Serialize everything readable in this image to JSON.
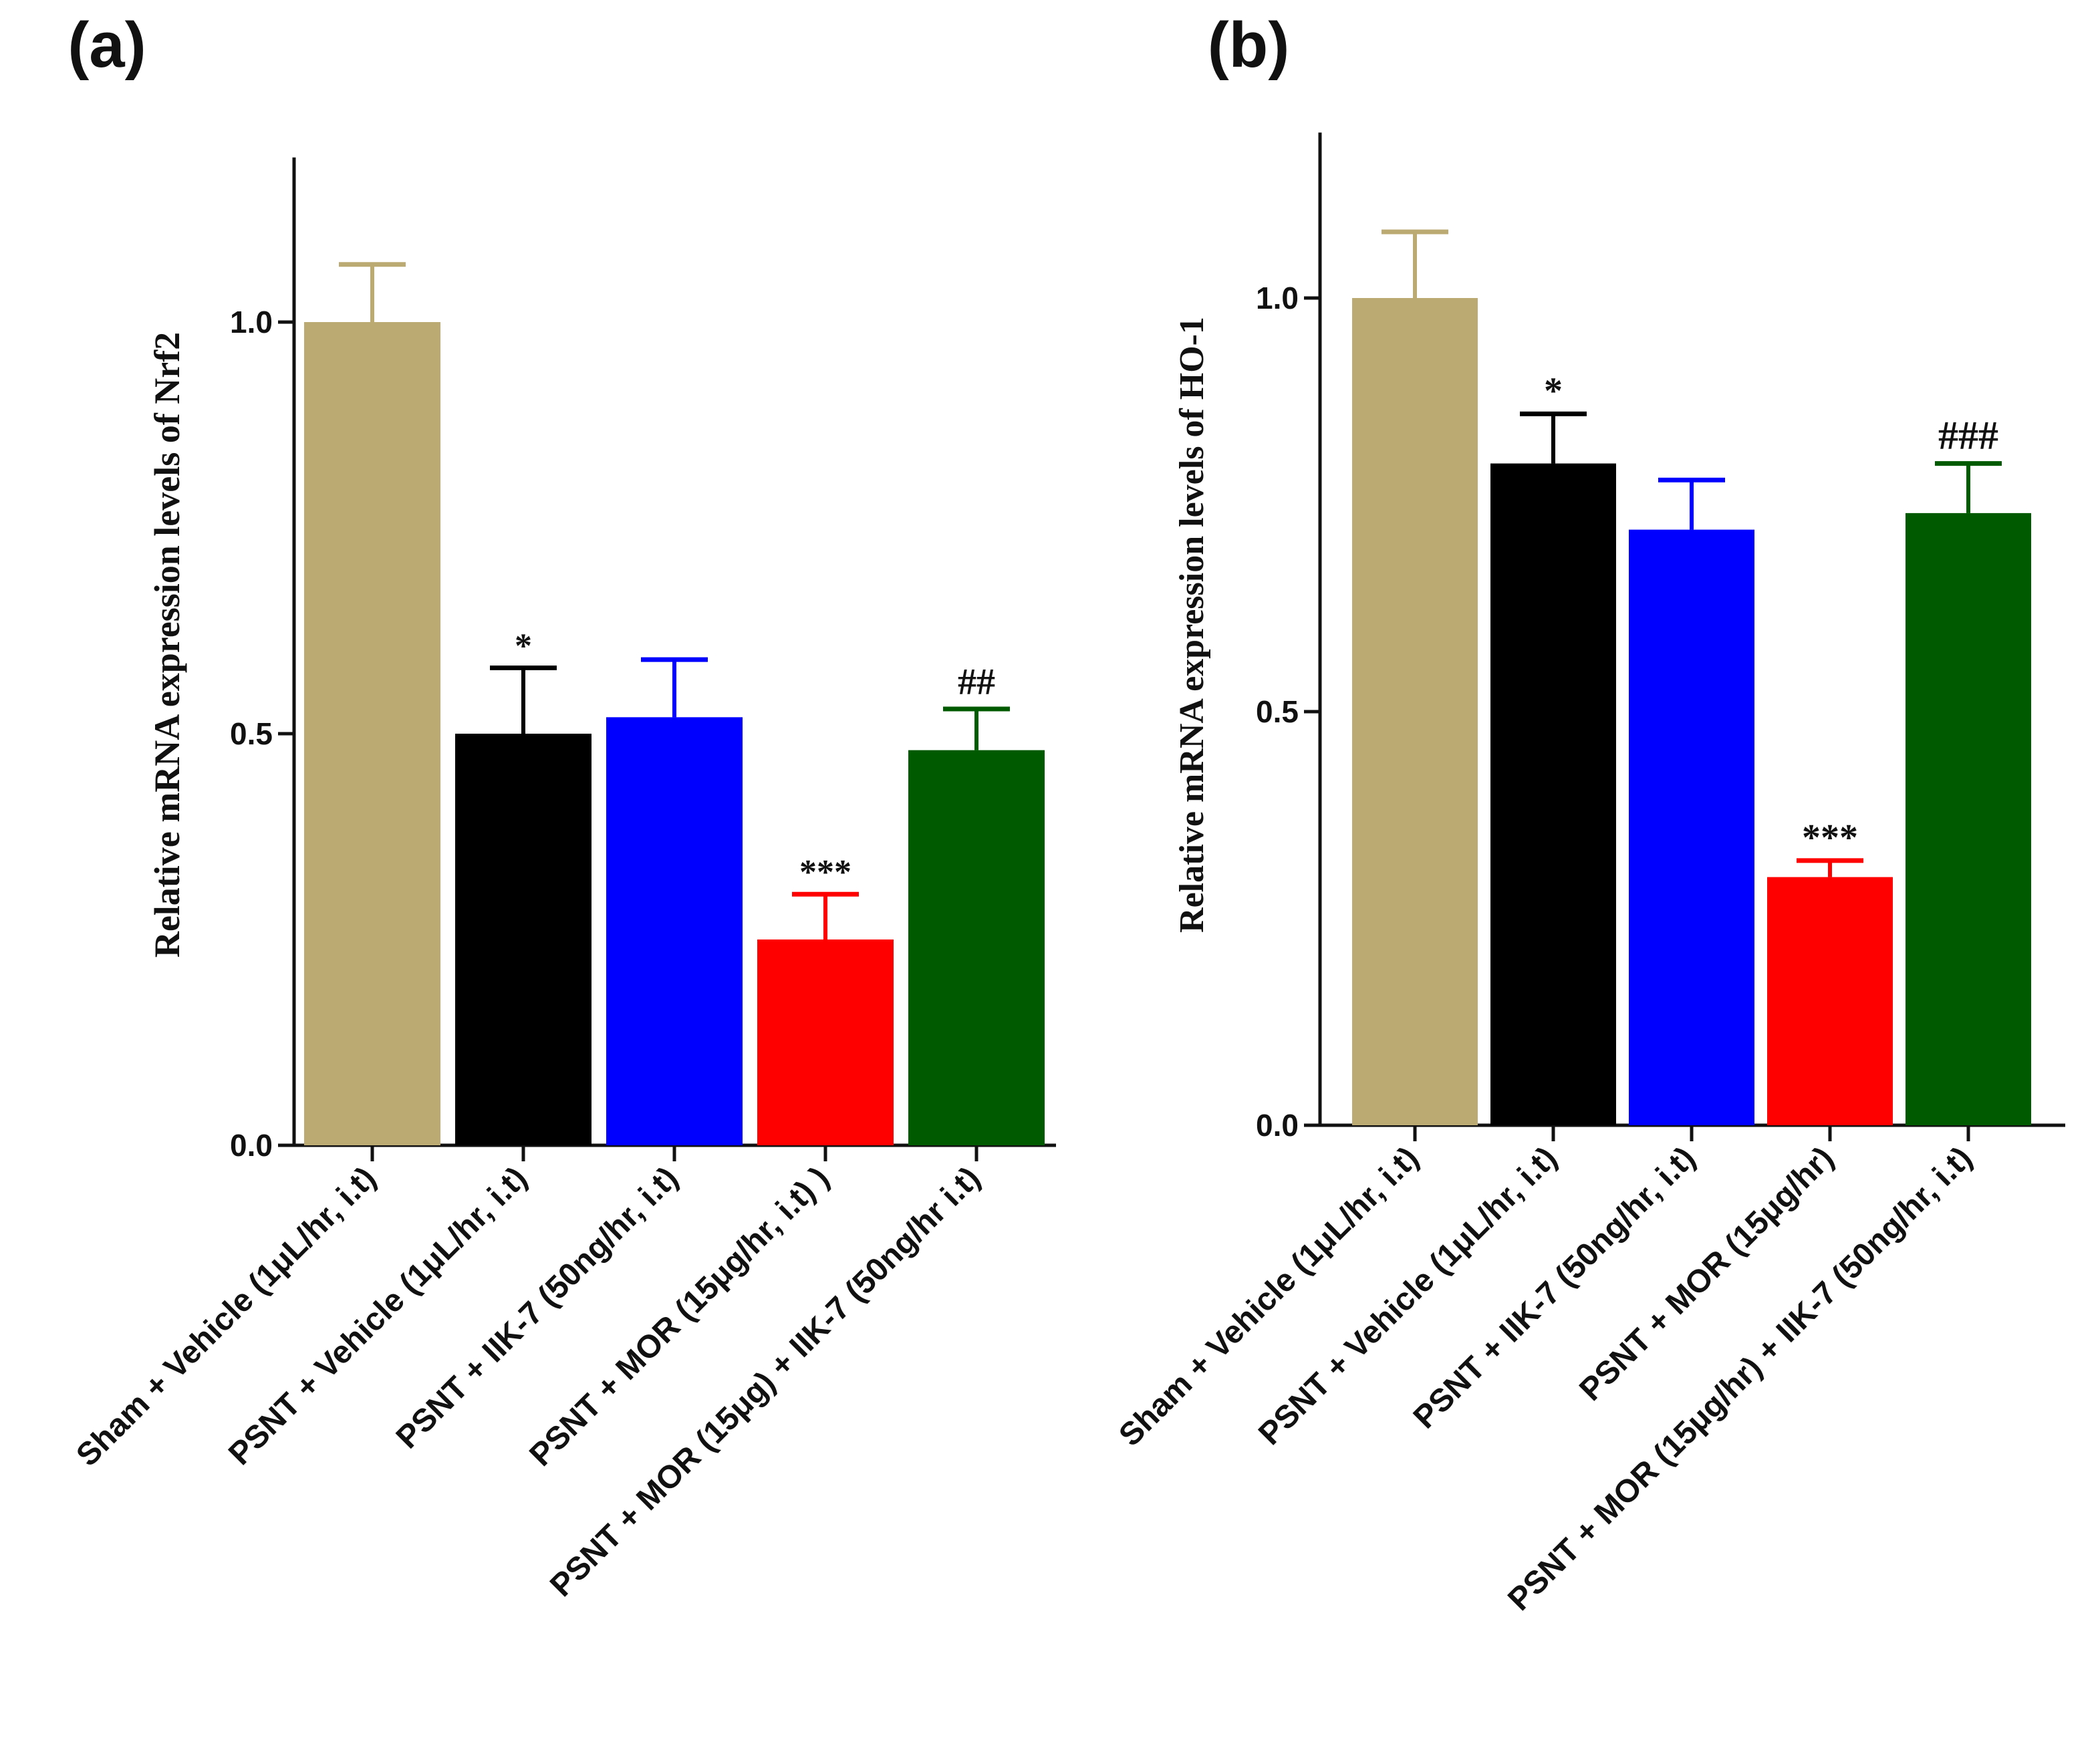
{
  "chart_data": [
    {
      "type": "bar",
      "panel_label": "(a)",
      "title": "",
      "xlabel": "",
      "ylabel": "Relative mRNA expression levels of Nrf2",
      "ylim": [
        0,
        1.2
      ],
      "yticks": [
        0.0,
        0.5,
        1.0
      ],
      "ytick_labels": [
        "0.0",
        "0.5",
        "1.0"
      ],
      "grid": false,
      "categories": [
        "Sham + Vehicle (1μL/hr, i.t)",
        "PSNT + Vehicle (1μL/hr, i.t)",
        "PSNT + IIK-7 (50ng/hr, i.t)",
        "PSNT + MOR (15μg/hr, i.t) )",
        "PSNT + MOR (15μg) + IIK-7 (50ng/hr i.t)"
      ],
      "values": [
        1.0,
        0.5,
        0.52,
        0.25,
        0.48
      ],
      "errors": [
        0.07,
        0.08,
        0.07,
        0.055,
        0.05
      ],
      "colors": [
        "#bcaa73",
        "#000000",
        "#0000ff",
        "#ff0000",
        "#005a00"
      ],
      "annotations": [
        "",
        "*",
        "",
        "***",
        "##"
      ]
    },
    {
      "type": "bar",
      "panel_label": "(b)",
      "title": "",
      "xlabel": "",
      "ylabel": "Relative mRNA expression levels of HO-1",
      "ylim": [
        0,
        1.2
      ],
      "yticks": [
        0.0,
        0.5,
        1.0
      ],
      "ytick_labels": [
        "0.0",
        "0.5",
        "1.0"
      ],
      "grid": false,
      "categories": [
        "Sham + Vehicle (1μL/hr, i.t)",
        "PSNT + Vehicle (1μL/hr, i.t)",
        "PSNT + IIK-7 (50ng/hr, i.t)",
        "PSNT + MOR (15μg/hr)",
        "PSNT + MOR (15μg/hr) + IIK-7 (50ng/hr, i.t)"
      ],
      "values": [
        1.0,
        0.8,
        0.72,
        0.3,
        0.74
      ],
      "errors": [
        0.08,
        0.06,
        0.06,
        0.02,
        0.06
      ],
      "colors": [
        "#bcaa73",
        "#000000",
        "#0000ff",
        "#ff0000",
        "#005a00"
      ],
      "annotations": [
        "",
        "*",
        "",
        "***",
        "###"
      ]
    }
  ]
}
